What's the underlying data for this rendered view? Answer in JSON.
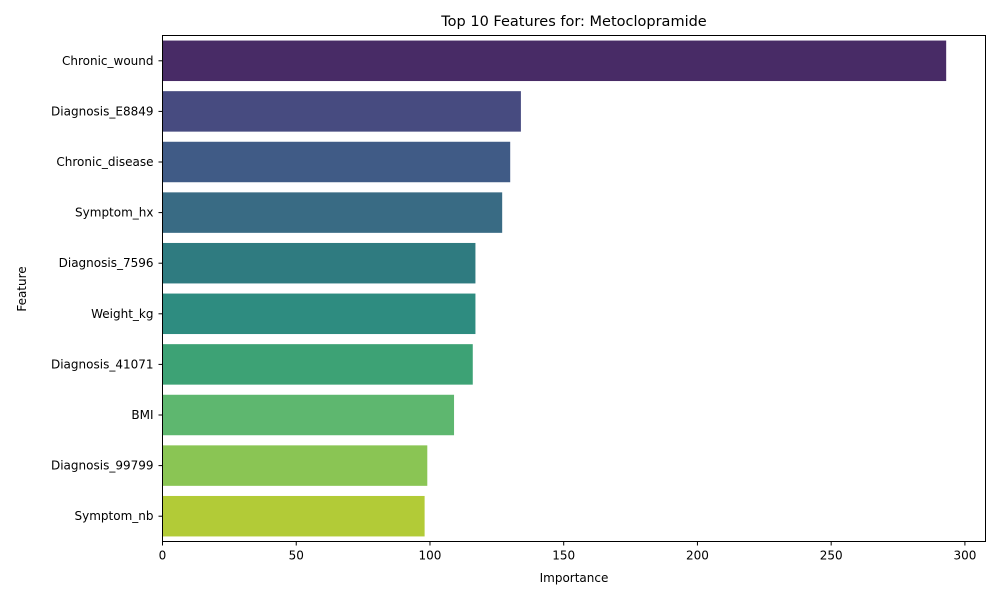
{
  "chart_data": {
    "type": "bar",
    "orientation": "horizontal",
    "title": "Top 10 Features for: Metoclopramide",
    "xlabel": "Importance",
    "ylabel": "Feature",
    "categories": [
      "Chronic_wound",
      "Diagnosis_E8849",
      "Chronic_disease",
      "Symptom_hx",
      "Diagnosis_7596",
      "Weight_kg",
      "Diagnosis_41071",
      "BMI",
      "Diagnosis_99799",
      "Symptom_nb"
    ],
    "values": [
      293,
      134,
      130,
      127,
      117,
      117,
      116,
      109,
      99,
      98
    ],
    "xlim": [
      0,
      307.7
    ],
    "xticks": [
      0,
      50,
      100,
      150,
      200,
      250,
      300
    ],
    "grid": false,
    "legend": "none",
    "colors": [
      "#482b66",
      "#474b80",
      "#405b86",
      "#396b84",
      "#2f7b80",
      "#2e8c80",
      "#3da275",
      "#5eb76f",
      "#8ac554",
      "#b2cb37"
    ]
  }
}
